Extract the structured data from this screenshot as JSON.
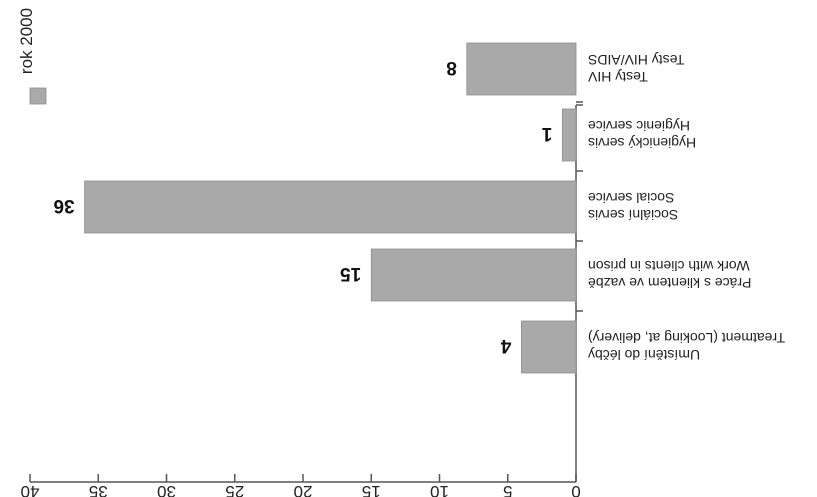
{
  "chart_data": {
    "type": "bar",
    "orientation": "horizontal",
    "categories": [
      {
        "line1": "Testy HIV",
        "line2": "Testy HIV/AIDS"
      },
      {
        "line1": "Hygienický servis",
        "line2": "Hygienic service"
      },
      {
        "line1": "Sociální servis",
        "line2": "Social service"
      },
      {
        "line1": "Práce s klientem ve vazbě",
        "line2": "Work with clients in prison"
      },
      {
        "line1": "Umístění do léčby",
        "line2": "Treatment (Looking at, delivery)"
      }
    ],
    "series": [
      {
        "name": "rok 2000",
        "values": [
          8,
          1,
          36,
          15,
          4
        ],
        "color": "#a9a9a9"
      }
    ],
    "data_labels": [
      "8",
      "1",
      "36",
      "15",
      "4"
    ],
    "xlim": [
      0,
      40
    ],
    "ticks": [
      0,
      5,
      10,
      15,
      20,
      25,
      30,
      35,
      40
    ],
    "tick_labels": [
      "0",
      "5",
      "10",
      "15",
      "20",
      "25",
      "30",
      "35",
      "40"
    ],
    "grid": false,
    "legend_position": "right",
    "rotation": "upside-down"
  }
}
